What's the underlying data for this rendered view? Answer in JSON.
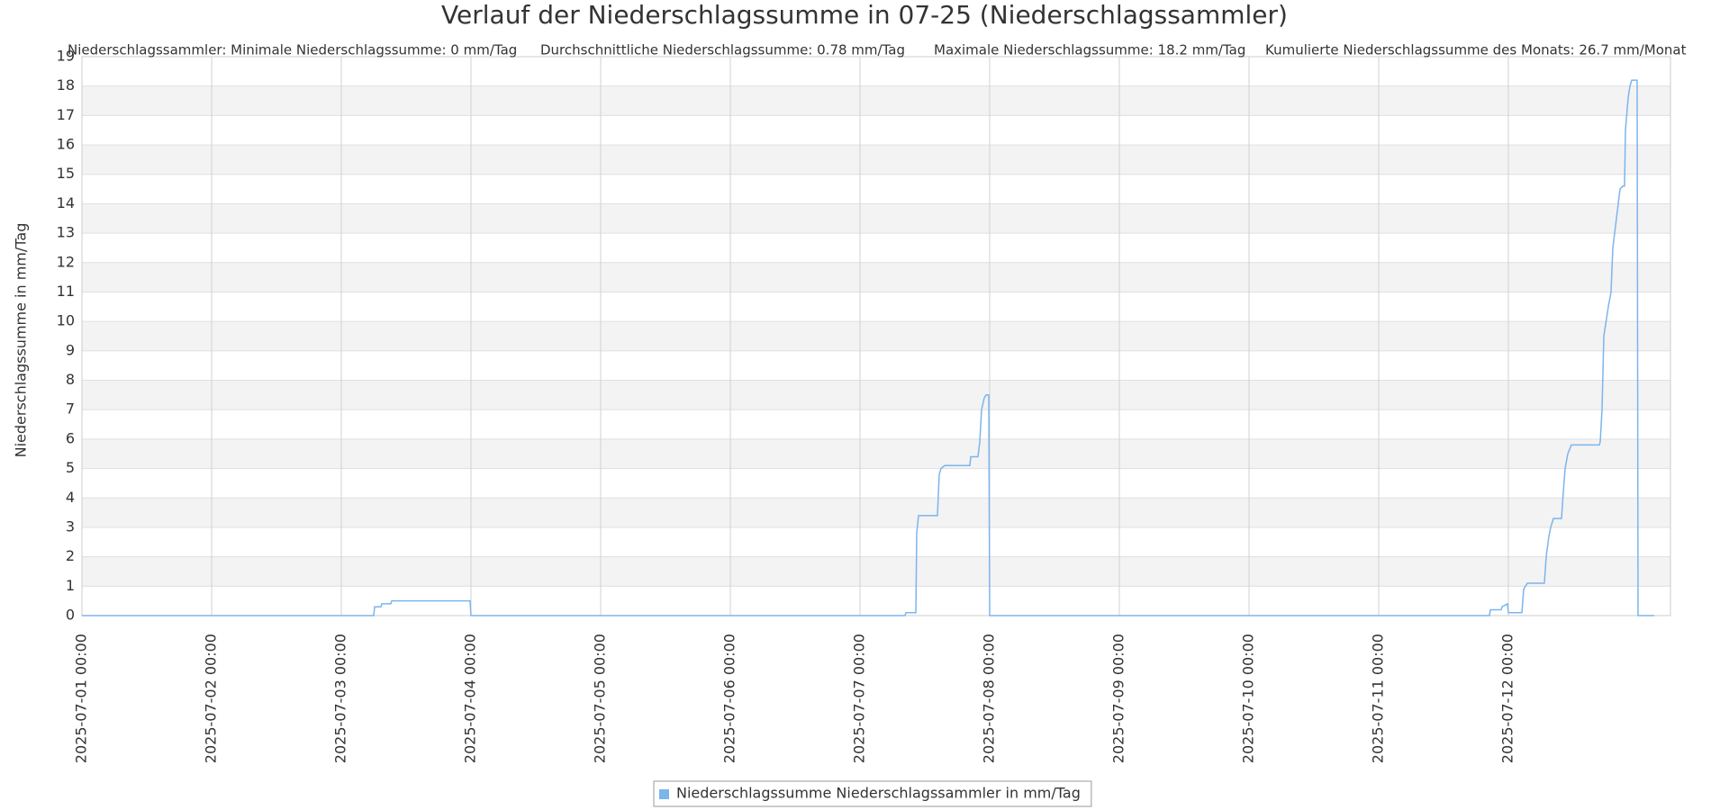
{
  "chart_data": {
    "type": "line",
    "title": "Verlauf der Niederschlagssumme in 07-25 (Niederschlagssammler)",
    "stats": [
      "Niederschlagssammler: Minimale Niederschlagssumme: 0 mm/Tag",
      "Durchschnittliche Niederschlagssumme: 0.78 mm/Tag",
      "Maximale Niederschlagssumme: 18.2 mm/Tag",
      "Kumulierte Niederschlagssumme des Monats: 26.7 mm/Monat"
    ],
    "y_label": "Niederschlagssumme in mm/Tag",
    "x": [
      "2025-07-01 00:00",
      "2025-07-03 06:00",
      "2025-07-03 06:10",
      "2025-07-03 07:20",
      "2025-07-03 07:30",
      "2025-07-03 09:10",
      "2025-07-03 09:20",
      "2025-07-03 23:50",
      "2025-07-04 00:00",
      "2025-07-07 08:20",
      "2025-07-07 08:30",
      "2025-07-07 10:20",
      "2025-07-07 10:30",
      "2025-07-07 10:50",
      "2025-07-07 14:20",
      "2025-07-07 14:40",
      "2025-07-07 15:00",
      "2025-07-07 15:40",
      "2025-07-07 20:20",
      "2025-07-07 20:30",
      "2025-07-07 21:50",
      "2025-07-07 22:10",
      "2025-07-07 22:30",
      "2025-07-07 23:00",
      "2025-07-07 23:20",
      "2025-07-07 23:50",
      "2025-07-08 00:00",
      "2025-07-11 20:30",
      "2025-07-11 20:40",
      "2025-07-11 22:40",
      "2025-07-11 22:50",
      "2025-07-11 23:50",
      "2025-07-12 00:00",
      "2025-07-12 02:30",
      "2025-07-12 02:50",
      "2025-07-12 03:30",
      "2025-07-12 06:40",
      "2025-07-12 07:00",
      "2025-07-12 07:30",
      "2025-07-12 07:50",
      "2025-07-12 08:20",
      "2025-07-12 09:50",
      "2025-07-12 10:10",
      "2025-07-12 10:30",
      "2025-07-12 11:00",
      "2025-07-12 11:40",
      "2025-07-12 16:50",
      "2025-07-12 17:00",
      "2025-07-12 17:20",
      "2025-07-12 17:40",
      "2025-07-12 18:30",
      "2025-07-12 19:00",
      "2025-07-12 19:20",
      "2025-07-12 20:20",
      "2025-07-12 20:40",
      "2025-07-12 21:10",
      "2025-07-12 21:30",
      "2025-07-12 21:40",
      "2025-07-12 22:10",
      "2025-07-12 22:30",
      "2025-07-12 22:50",
      "2025-07-12 23:50",
      "2025-07-13 00:00",
      "2025-07-13 03:00"
    ],
    "series": [
      {
        "name": "Niederschlagssumme Niederschlagssammler in mm/Tag",
        "color": "#7cb5ec",
        "values": [
          0,
          0,
          0.3,
          0.3,
          0.4,
          0.4,
          0.5,
          0.5,
          0,
          0,
          0.1,
          0.1,
          2.8,
          3.4,
          3.4,
          4.8,
          5.0,
          5.1,
          5.1,
          5.4,
          5.4,
          5.9,
          7.0,
          7.4,
          7.5,
          7.5,
          0,
          0,
          0.2,
          0.2,
          0.3,
          0.4,
          0.1,
          0.1,
          0.9,
          1.1,
          1.1,
          2.0,
          2.7,
          3.0,
          3.3,
          3.3,
          4.2,
          5.0,
          5.5,
          5.8,
          5.8,
          5.9,
          7.0,
          9.5,
          10.5,
          11.0,
          12.5,
          14.0,
          14.5,
          14.6,
          14.6,
          16.5,
          17.6,
          18.0,
          18.2,
          18.2,
          0,
          0
        ]
      }
    ],
    "xlim": [
      "2025-07-01 00:00",
      "2025-07-13 06:00"
    ],
    "xticks": [
      "2025-07-01 00:00",
      "2025-07-02 00:00",
      "2025-07-03 00:00",
      "2025-07-04 00:00",
      "2025-07-05 00:00",
      "2025-07-06 00:00",
      "2025-07-07 00:00",
      "2025-07-08 00:00",
      "2025-07-09 00:00",
      "2025-07-10 00:00",
      "2025-07-11 00:00",
      "2025-07-12 00:00"
    ],
    "ylim": [
      0,
      19
    ],
    "yticks": [
      0,
      1,
      2,
      3,
      4,
      5,
      6,
      7,
      8,
      9,
      10,
      11,
      12,
      13,
      14,
      15,
      16,
      17,
      18,
      19
    ],
    "grid": true,
    "bands": true,
    "legend": "bottom"
  }
}
